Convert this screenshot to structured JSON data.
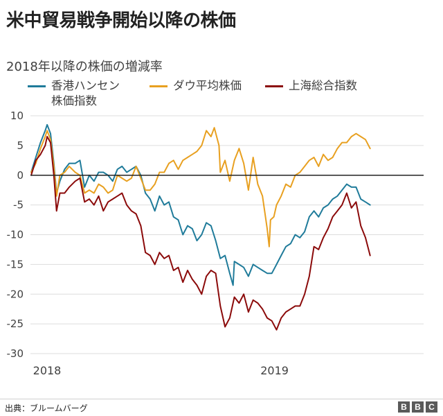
{
  "title": "米中貿易戦争開始以降の株価",
  "subtitle": "2018年以降の株価の増減率",
  "legend": [
    {
      "name": "香港ハンセン",
      "name2": "株価指数",
      "color": "#1f7b9a"
    },
    {
      "name": "ダウ平均株価",
      "name2": "",
      "color": "#e8a020"
    },
    {
      "name": "上海総合指数",
      "name2": "",
      "color": "#8b0a0a"
    }
  ],
  "source": "出典：ブルームバーグ",
  "logo": [
    "B",
    "B",
    "C"
  ],
  "chart_data": {
    "type": "line",
    "x_tick_labels": [
      "2018",
      "2019"
    ],
    "y_ticks": [
      10,
      5,
      0,
      -5,
      -10,
      -15,
      -20,
      -25,
      -30
    ],
    "ylim": [
      -30,
      10
    ],
    "xlim": [
      "2018-01-01",
      "2019-08-12"
    ],
    "zero_line": true,
    "series": [
      {
        "name": "香港ハンセン株価指数",
        "color": "#1f7b9a",
        "points": [
          [
            "2018-01-02",
            0.5
          ],
          [
            "2018-01-09",
            3.0
          ],
          [
            "2018-01-16",
            5.5
          ],
          [
            "2018-01-23",
            7.5
          ],
          [
            "2018-01-26",
            8.5
          ],
          [
            "2018-01-31",
            7.0
          ],
          [
            "2018-02-05",
            2.0
          ],
          [
            "2018-02-09",
            -3.0
          ],
          [
            "2018-02-14",
            -1.0
          ],
          [
            "2018-02-21",
            1.0
          ],
          [
            "2018-02-28",
            2.0
          ],
          [
            "2018-03-09",
            2.0
          ],
          [
            "2018-03-16",
            2.5
          ],
          [
            "2018-03-23",
            -2.0
          ],
          [
            "2018-03-30",
            0.0
          ],
          [
            "2018-04-06",
            -1.0
          ],
          [
            "2018-04-13",
            0.5
          ],
          [
            "2018-04-20",
            0.5
          ],
          [
            "2018-04-27",
            0.0
          ],
          [
            "2018-05-04",
            -1.0
          ],
          [
            "2018-05-11",
            1.0
          ],
          [
            "2018-05-18",
            1.5
          ],
          [
            "2018-05-25",
            0.5
          ],
          [
            "2018-06-01",
            1.0
          ],
          [
            "2018-06-08",
            1.5
          ],
          [
            "2018-06-15",
            0.0
          ],
          [
            "2018-06-22",
            -3.0
          ],
          [
            "2018-06-29",
            -4.0
          ],
          [
            "2018-07-06",
            -6.0
          ],
          [
            "2018-07-13",
            -3.5
          ],
          [
            "2018-07-20",
            -5.0
          ],
          [
            "2018-07-27",
            -4.5
          ],
          [
            "2018-08-03",
            -7.0
          ],
          [
            "2018-08-10",
            -7.5
          ],
          [
            "2018-08-17",
            -10.0
          ],
          [
            "2018-08-24",
            -8.5
          ],
          [
            "2018-08-31",
            -9.0
          ],
          [
            "2018-09-07",
            -11.0
          ],
          [
            "2018-09-14",
            -10.0
          ],
          [
            "2018-09-21",
            -8.0
          ],
          [
            "2018-09-28",
            -8.5
          ],
          [
            "2018-10-05",
            -11.0
          ],
          [
            "2018-10-12",
            -14.0
          ],
          [
            "2018-10-19",
            -13.5
          ],
          [
            "2018-10-26",
            -16.5
          ],
          [
            "2018-10-31",
            -18.5
          ],
          [
            "2018-11-02",
            -14.5
          ],
          [
            "2018-11-09",
            -15.0
          ],
          [
            "2018-11-16",
            -15.5
          ],
          [
            "2018-11-23",
            -17.0
          ],
          [
            "2018-11-30",
            -15.0
          ],
          [
            "2018-12-07",
            -15.5
          ],
          [
            "2018-12-14",
            -16.0
          ],
          [
            "2018-12-21",
            -16.5
          ],
          [
            "2018-12-28",
            -16.5
          ],
          [
            "2019-01-04",
            -15.0
          ],
          [
            "2019-01-11",
            -13.5
          ],
          [
            "2019-01-18",
            -12.0
          ],
          [
            "2019-01-25",
            -11.5
          ],
          [
            "2019-02-01",
            -10.0
          ],
          [
            "2019-02-08",
            -10.5
          ],
          [
            "2019-02-15",
            -9.5
          ],
          [
            "2019-02-22",
            -7.0
          ],
          [
            "2019-03-01",
            -6.0
          ],
          [
            "2019-03-08",
            -7.0
          ],
          [
            "2019-03-15",
            -5.5
          ],
          [
            "2019-03-22",
            -5.0
          ],
          [
            "2019-03-29",
            -4.0
          ],
          [
            "2019-04-05",
            -3.5
          ],
          [
            "2019-04-12",
            -2.5
          ],
          [
            "2019-04-19",
            -1.5
          ],
          [
            "2019-04-26",
            -2.0
          ],
          [
            "2019-05-03",
            -2.0
          ],
          [
            "2019-05-10",
            -4.0
          ],
          [
            "2019-05-17",
            -4.5
          ],
          [
            "2019-05-24",
            -5.0
          ]
        ]
      },
      {
        "name": "ダウ平均株価",
        "color": "#e8a020",
        "points": [
          [
            "2018-01-02",
            0.5
          ],
          [
            "2018-01-09",
            2.0
          ],
          [
            "2018-01-16",
            4.5
          ],
          [
            "2018-01-23",
            6.5
          ],
          [
            "2018-01-26",
            7.5
          ],
          [
            "2018-01-31",
            6.0
          ],
          [
            "2018-02-05",
            1.5
          ],
          [
            "2018-02-09",
            -3.5
          ],
          [
            "2018-02-14",
            0.0
          ],
          [
            "2018-02-21",
            0.5
          ],
          [
            "2018-02-28",
            1.5
          ],
          [
            "2018-03-09",
            0.5
          ],
          [
            "2018-03-16",
            0.0
          ],
          [
            "2018-03-23",
            -3.0
          ],
          [
            "2018-03-30",
            -2.5
          ],
          [
            "2018-04-06",
            -3.0
          ],
          [
            "2018-04-13",
            -1.5
          ],
          [
            "2018-04-20",
            -2.0
          ],
          [
            "2018-04-27",
            -3.0
          ],
          [
            "2018-05-04",
            -2.5
          ],
          [
            "2018-05-11",
            0.0
          ],
          [
            "2018-05-18",
            -0.5
          ],
          [
            "2018-05-25",
            -1.0
          ],
          [
            "2018-06-01",
            -0.5
          ],
          [
            "2018-06-08",
            1.5
          ],
          [
            "2018-06-15",
            -0.5
          ],
          [
            "2018-06-22",
            -2.5
          ],
          [
            "2018-06-29",
            -2.5
          ],
          [
            "2018-07-06",
            -1.5
          ],
          [
            "2018-07-13",
            0.5
          ],
          [
            "2018-07-20",
            0.5
          ],
          [
            "2018-07-27",
            2.0
          ],
          [
            "2018-08-03",
            2.5
          ],
          [
            "2018-08-10",
            1.0
          ],
          [
            "2018-08-17",
            2.5
          ],
          [
            "2018-08-24",
            3.0
          ],
          [
            "2018-08-31",
            3.5
          ],
          [
            "2018-09-07",
            4.0
          ],
          [
            "2018-09-14",
            5.0
          ],
          [
            "2018-09-21",
            7.5
          ],
          [
            "2018-09-28",
            6.5
          ],
          [
            "2018-10-03",
            8.0
          ],
          [
            "2018-10-10",
            5.0
          ],
          [
            "2018-10-12",
            0.5
          ],
          [
            "2018-10-19",
            2.5
          ],
          [
            "2018-10-26",
            -1.0
          ],
          [
            "2018-11-02",
            2.5
          ],
          [
            "2018-11-09",
            4.5
          ],
          [
            "2018-11-16",
            2.0
          ],
          [
            "2018-11-23",
            -2.5
          ],
          [
            "2018-11-30",
            3.0
          ],
          [
            "2018-12-07",
            -1.5
          ],
          [
            "2018-12-14",
            -3.5
          ],
          [
            "2018-12-21",
            -9.0
          ],
          [
            "2018-12-24",
            -12.0
          ],
          [
            "2018-12-26",
            -7.5
          ],
          [
            "2018-12-31",
            -7.0
          ],
          [
            "2019-01-04",
            -5.0
          ],
          [
            "2019-01-11",
            -3.5
          ],
          [
            "2019-01-18",
            -1.5
          ],
          [
            "2019-01-25",
            -2.0
          ],
          [
            "2019-02-01",
            0.0
          ],
          [
            "2019-02-08",
            0.5
          ],
          [
            "2019-02-15",
            1.5
          ],
          [
            "2019-02-22",
            2.5
          ],
          [
            "2019-03-01",
            3.0
          ],
          [
            "2019-03-08",
            1.5
          ],
          [
            "2019-03-15",
            3.5
          ],
          [
            "2019-03-22",
            2.5
          ],
          [
            "2019-03-29",
            3.0
          ],
          [
            "2019-04-05",
            4.5
          ],
          [
            "2019-04-12",
            5.5
          ],
          [
            "2019-04-19",
            5.5
          ],
          [
            "2019-04-26",
            6.5
          ],
          [
            "2019-05-03",
            7.0
          ],
          [
            "2019-05-10",
            6.5
          ],
          [
            "2019-05-17",
            6.0
          ],
          [
            "2019-05-24",
            4.5
          ]
        ]
      },
      {
        "name": "上海総合指数",
        "color": "#8b0a0a",
        "points": [
          [
            "2018-01-02",
            0.0
          ],
          [
            "2018-01-09",
            2.5
          ],
          [
            "2018-01-16",
            3.5
          ],
          [
            "2018-01-23",
            5.0
          ],
          [
            "2018-01-26",
            6.5
          ],
          [
            "2018-01-31",
            5.5
          ],
          [
            "2018-02-05",
            0.0
          ],
          [
            "2018-02-09",
            -6.0
          ],
          [
            "2018-02-14",
            -3.0
          ],
          [
            "2018-02-21",
            -3.0
          ],
          [
            "2018-02-28",
            -2.0
          ],
          [
            "2018-03-09",
            -1.0
          ],
          [
            "2018-03-16",
            -0.5
          ],
          [
            "2018-03-23",
            -4.5
          ],
          [
            "2018-03-30",
            -4.0
          ],
          [
            "2018-04-06",
            -5.0
          ],
          [
            "2018-04-13",
            -3.5
          ],
          [
            "2018-04-20",
            -6.0
          ],
          [
            "2018-04-27",
            -4.5
          ],
          [
            "2018-05-04",
            -4.0
          ],
          [
            "2018-05-11",
            -3.5
          ],
          [
            "2018-05-18",
            -3.0
          ],
          [
            "2018-05-25",
            -5.0
          ],
          [
            "2018-06-01",
            -6.0
          ],
          [
            "2018-06-08",
            -6.5
          ],
          [
            "2018-06-15",
            -8.5
          ],
          [
            "2018-06-22",
            -13.0
          ],
          [
            "2018-06-29",
            -13.5
          ],
          [
            "2018-07-06",
            -15.0
          ],
          [
            "2018-07-13",
            -13.0
          ],
          [
            "2018-07-20",
            -14.0
          ],
          [
            "2018-07-27",
            -13.5
          ],
          [
            "2018-08-03",
            -16.0
          ],
          [
            "2018-08-10",
            -15.5
          ],
          [
            "2018-08-17",
            -18.0
          ],
          [
            "2018-08-24",
            -16.0
          ],
          [
            "2018-08-31",
            -17.5
          ],
          [
            "2018-09-07",
            -18.5
          ],
          [
            "2018-09-14",
            -20.0
          ],
          [
            "2018-09-21",
            -17.0
          ],
          [
            "2018-09-28",
            -16.0
          ],
          [
            "2018-10-05",
            -16.5
          ],
          [
            "2018-10-12",
            -22.0
          ],
          [
            "2018-10-19",
            -25.5
          ],
          [
            "2018-10-26",
            -24.0
          ],
          [
            "2018-11-02",
            -20.5
          ],
          [
            "2018-11-09",
            -21.5
          ],
          [
            "2018-11-16",
            -20.0
          ],
          [
            "2018-11-23",
            -23.0
          ],
          [
            "2018-11-30",
            -21.0
          ],
          [
            "2018-12-07",
            -21.5
          ],
          [
            "2018-12-14",
            -22.5
          ],
          [
            "2018-12-21",
            -24.0
          ],
          [
            "2018-12-28",
            -24.5
          ],
          [
            "2019-01-04",
            -26.0
          ],
          [
            "2019-01-11",
            -24.0
          ],
          [
            "2019-01-18",
            -23.0
          ],
          [
            "2019-01-25",
            -22.5
          ],
          [
            "2019-02-01",
            -22.0
          ],
          [
            "2019-02-08",
            -22.0
          ],
          [
            "2019-02-15",
            -20.0
          ],
          [
            "2019-02-22",
            -17.0
          ],
          [
            "2019-03-01",
            -12.0
          ],
          [
            "2019-03-08",
            -12.5
          ],
          [
            "2019-03-15",
            -10.5
          ],
          [
            "2019-03-22",
            -9.0
          ],
          [
            "2019-03-29",
            -7.0
          ],
          [
            "2019-04-05",
            -6.0
          ],
          [
            "2019-04-12",
            -5.0
          ],
          [
            "2019-04-19",
            -3.0
          ],
          [
            "2019-04-26",
            -5.5
          ],
          [
            "2019-05-03",
            -4.5
          ],
          [
            "2019-05-10",
            -8.5
          ],
          [
            "2019-05-17",
            -10.5
          ],
          [
            "2019-05-24",
            -13.5
          ]
        ]
      }
    ]
  }
}
